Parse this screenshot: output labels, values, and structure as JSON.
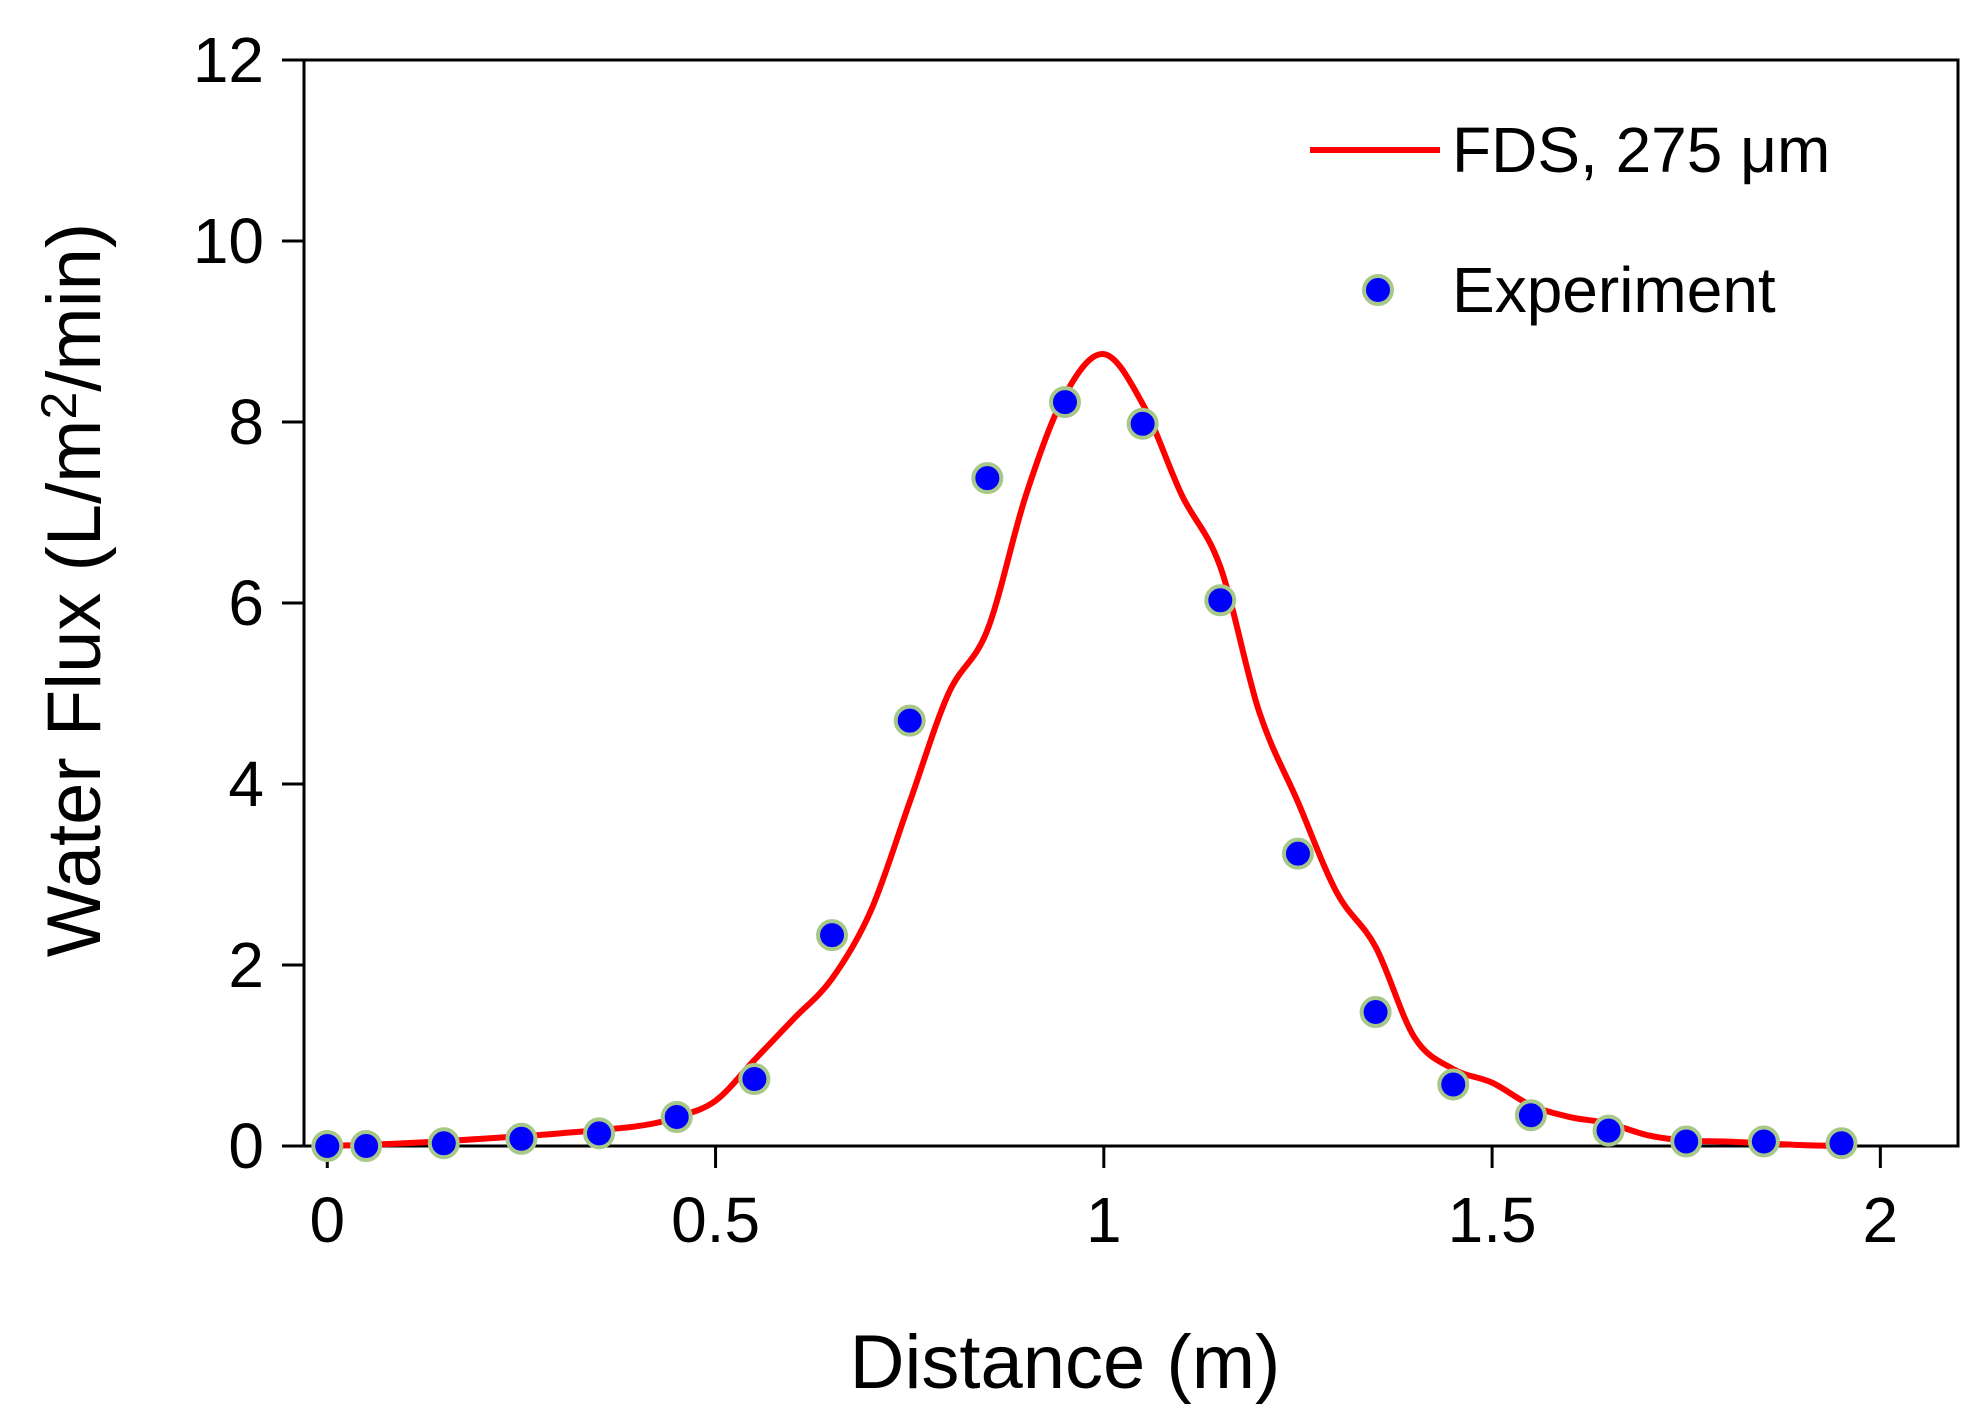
{
  "chart_data": {
    "type": "line",
    "title": "",
    "xlabel": "Distance (m)",
    "ylabel_parts": [
      "Water Flux (L/m",
      "2",
      "/min)"
    ],
    "xlim": [
      -0.03,
      2.1
    ],
    "ylim": [
      0,
      12
    ],
    "xticks": [
      0,
      0.5,
      1,
      1.5,
      2
    ],
    "xtick_labels": [
      "0",
      "0.5",
      "1",
      "1.5",
      "2"
    ],
    "yticks": [
      0,
      2,
      4,
      6,
      8,
      10,
      12
    ],
    "ytick_labels": [
      "0",
      "2",
      "4",
      "6",
      "8",
      "10",
      "12"
    ],
    "grid": false,
    "legend_position": "top-right",
    "colors": {
      "line": "#ff0000",
      "marker_fill": "#0000ff",
      "marker_edge": "#a8c88a",
      "axis": "#000000"
    },
    "series": [
      {
        "name": "FDS, 275 μm",
        "kind": "line",
        "x": [
          0,
          0.1,
          0.2,
          0.3,
          0.4,
          0.45,
          0.5,
          0.55,
          0.6,
          0.65,
          0.7,
          0.75,
          0.8,
          0.85,
          0.9,
          0.95,
          1.0,
          1.05,
          1.1,
          1.15,
          1.2,
          1.25,
          1.3,
          1.35,
          1.4,
          1.45,
          1.5,
          1.55,
          1.6,
          1.65,
          1.7,
          1.75,
          1.8,
          1.85,
          1.9,
          1.95
        ],
        "values": [
          0,
          0.03,
          0.08,
          0.14,
          0.22,
          0.32,
          0.5,
          0.95,
          1.4,
          1.85,
          2.6,
          3.8,
          5.0,
          5.7,
          7.2,
          8.3,
          8.75,
          8.2,
          7.2,
          6.4,
          4.8,
          3.8,
          2.8,
          2.2,
          1.2,
          0.85,
          0.7,
          0.45,
          0.32,
          0.25,
          0.12,
          0.06,
          0.05,
          0.03,
          0.01,
          0
        ]
      },
      {
        "name": "Experiment",
        "kind": "scatter",
        "x": [
          0,
          0.05,
          0.15,
          0.25,
          0.35,
          0.45,
          0.55,
          0.65,
          0.75,
          0.85,
          0.95,
          1.05,
          1.15,
          1.25,
          1.35,
          1.45,
          1.55,
          1.65,
          1.75,
          1.85,
          1.95
        ],
        "values": [
          0,
          0,
          0.03,
          0.08,
          0.14,
          0.32,
          0.74,
          2.33,
          4.7,
          7.38,
          8.22,
          7.98,
          6.03,
          3.23,
          1.48,
          0.68,
          0.34,
          0.17,
          0.05,
          0.05,
          0.03
        ]
      }
    ]
  }
}
